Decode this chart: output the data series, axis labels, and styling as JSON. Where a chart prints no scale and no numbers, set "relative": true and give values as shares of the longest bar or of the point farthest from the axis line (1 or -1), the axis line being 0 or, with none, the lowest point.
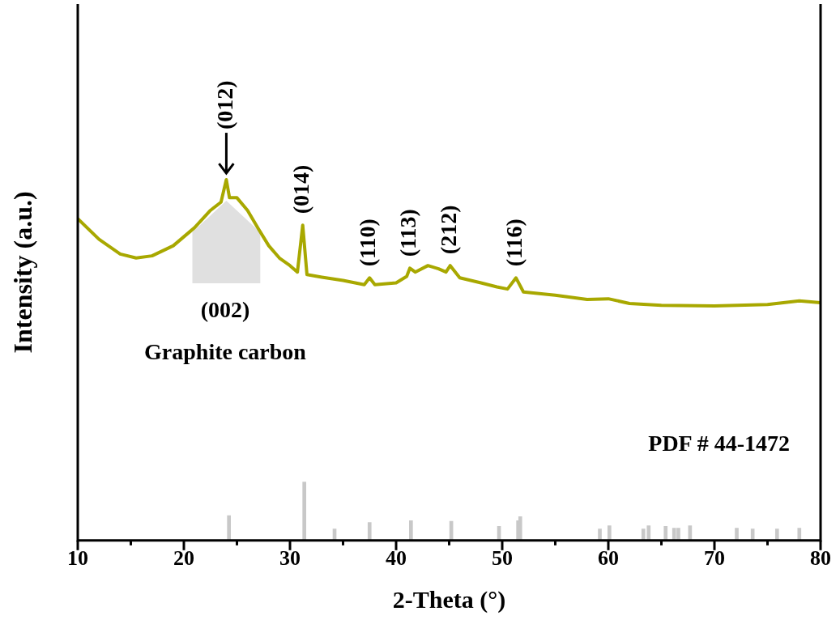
{
  "chart_data": {
    "type": "line",
    "xlabel": "2-Theta (°)",
    "ylabel": "Intensity (a.u.)",
    "relative": true,
    "xlim": [
      10,
      80
    ],
    "xticks": [
      10,
      {
        "value": 15,
        "label": null
      },
      20,
      {
        "value": 25,
        "label": null
      },
      30,
      {
        "value": 35,
        "label": null
      },
      40,
      {
        "value": 45,
        "label": null
      },
      50,
      {
        "value": 55,
        "label": null
      },
      60,
      {
        "value": 65,
        "label": null
      },
      70,
      {
        "value": 75,
        "label": null
      },
      80
    ],
    "grid": false,
    "legend": false,
    "marker": "none",
    "line_style": "solid",
    "series": [
      {
        "color": "#a8a800",
        "x": [
          10,
          12,
          14,
          15.5,
          17,
          19,
          21,
          22.5,
          23.5,
          24,
          24.3,
          25,
          26,
          27,
          28,
          29,
          30,
          30.7,
          31.2,
          31.6,
          33,
          35,
          37,
          37.5,
          38,
          40,
          41,
          41.3,
          41.8,
          43,
          44,
          44.7,
          45.1,
          46,
          48,
          49.5,
          50.5,
          51.3,
          52,
          55,
          58,
          60,
          62,
          65,
          70,
          75,
          78,
          80
        ],
        "values": [
          0.892,
          0.835,
          0.794,
          0.783,
          0.789,
          0.817,
          0.867,
          0.915,
          0.938,
          1.0,
          0.95,
          0.95,
          0.915,
          0.865,
          0.817,
          0.783,
          0.762,
          0.744,
          0.874,
          0.737,
          0.73,
          0.721,
          0.709,
          0.728,
          0.709,
          0.714,
          0.732,
          0.755,
          0.744,
          0.762,
          0.753,
          0.744,
          0.762,
          0.728,
          0.714,
          0.703,
          0.697,
          0.728,
          0.689,
          0.68,
          0.668,
          0.67,
          0.657,
          0.652,
          0.65,
          0.654,
          0.664,
          0.659
        ]
      },
      {
        "type": "bar",
        "color": "#c8c8c8",
        "x": [
          24.25,
          31.35,
          34.2,
          37.5,
          41.4,
          45.2,
          49.7,
          51.5,
          51.7,
          59.2,
          60.1,
          63.3,
          63.8,
          65.4,
          66.2,
          66.6,
          67.7,
          72.1,
          73.6,
          75.9,
          78.0
        ],
        "values": [
          0.069,
          0.162,
          0.032,
          0.05,
          0.055,
          0.053,
          0.039,
          0.055,
          0.066,
          0.032,
          0.041,
          0.032,
          0.041,
          0.039,
          0.034,
          0.034,
          0.041,
          0.034,
          0.032,
          0.032,
          0.034
        ]
      }
    ],
    "annotations": [
      {
        "text": "(012)",
        "x": 24,
        "y": 1.0
      },
      {
        "text": "(014)",
        "x": 31.2,
        "y": 0.874
      },
      {
        "text": "(110)",
        "x": 37.5,
        "y": 0.728
      },
      {
        "text": "(113)",
        "x": 41.3,
        "y": 0.755
      },
      {
        "text": "(212)",
        "x": 45.1,
        "y": 0.762
      },
      {
        "text": "(116)",
        "x": 51.3,
        "y": 0.728
      },
      "(002)",
      "Graphite carbon",
      "PDF # 44-1472"
    ]
  }
}
